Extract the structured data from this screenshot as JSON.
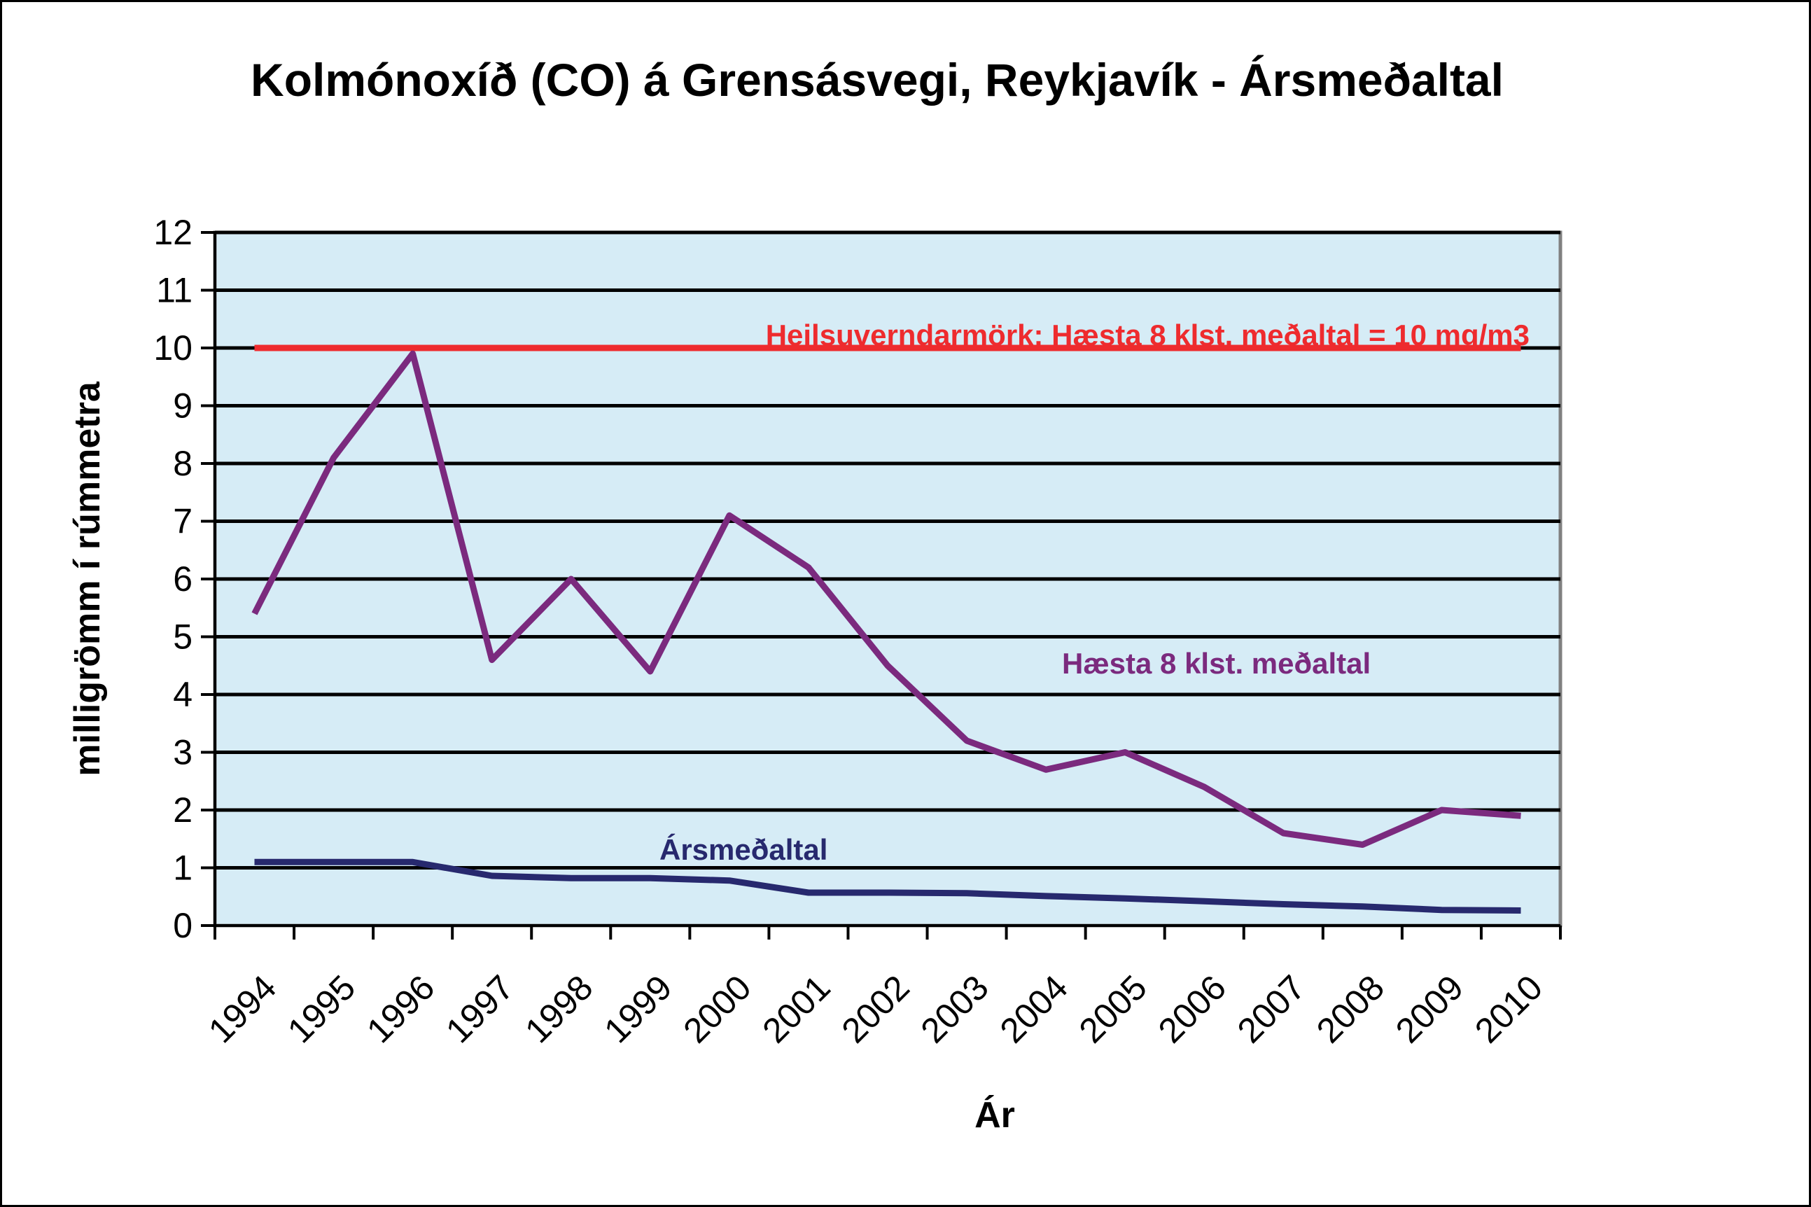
{
  "chart_data": {
    "type": "line",
    "title": "Kolmónoxíð (CO) á Grensásvegi, Reykjavík - Ársmeðaltal",
    "xlabel": "Ár",
    "ylabel": "milligrömm í rúmmetra",
    "ylim": [
      0,
      12
    ],
    "yticks": [
      "0",
      "1",
      "2",
      "3",
      "4",
      "5",
      "6",
      "7",
      "8",
      "9",
      "10",
      "11",
      "12"
    ],
    "categories": [
      "1994",
      "1995",
      "1996",
      "1997",
      "1998",
      "1999",
      "2000",
      "2001",
      "2002",
      "2003",
      "2004",
      "2005",
      "2006",
      "2007",
      "2008",
      "2009",
      "2010"
    ],
    "grid": true,
    "plot_background": "#d6ecf6",
    "series": [
      {
        "name": "Hæsta 8 klst. meðaltal",
        "color": "#7b2a7e",
        "values": [
          5.4,
          8.1,
          9.9,
          4.6,
          6.0,
          4.4,
          7.1,
          6.2,
          4.5,
          3.2,
          2.7,
          3.0,
          2.4,
          1.6,
          1.4,
          2.0,
          1.9
        ]
      },
      {
        "name": "Ársmeðaltal",
        "color": "#27296e",
        "values": [
          1.1,
          1.1,
          1.1,
          0.86,
          0.82,
          0.82,
          0.78,
          0.57,
          0.57,
          0.56,
          0.51,
          0.47,
          0.42,
          0.37,
          0.33,
          0.27,
          0.26
        ]
      },
      {
        "name": "Heilsuverndarmörk",
        "color": "#ee2b2e",
        "values": [
          10,
          10,
          10,
          10,
          10,
          10,
          10,
          10,
          10,
          10,
          10,
          10,
          10,
          10,
          10,
          10,
          10
        ]
      }
    ],
    "annotations": {
      "limit": "Heilsuverndarmörk: Hæsta 8 klst. meðaltal = 10 mg/m3",
      "max8h": "Hæsta 8 klst. meðaltal",
      "annual": "Ársmeðaltal"
    }
  }
}
